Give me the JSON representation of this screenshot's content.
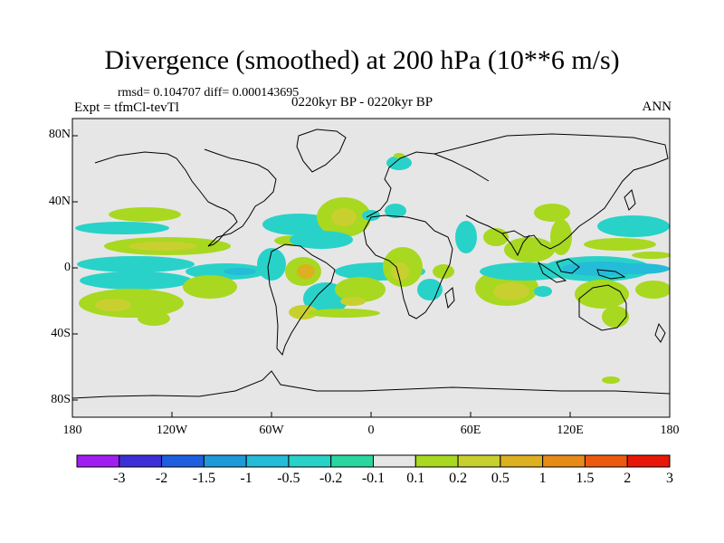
{
  "title": "Divergence (smoothed) at 200 hPa (10**6 m/s)",
  "stats": "rmsd= 0.104707  diff= 0.000143695",
  "experiment": "Expt = tfmCl-tevTl",
  "period": "0220kyr BP - 0220kyr BP",
  "season": "ANN",
  "lat_labels": [
    "80N",
    "40N",
    "0",
    "40S",
    "80S"
  ],
  "lon_labels": [
    "180",
    "120W",
    "60W",
    "0",
    "60E",
    "120E",
    "180"
  ],
  "colorbar": {
    "labels": [
      "-3",
      "-2",
      "-1.5",
      "-1",
      "-0.5",
      "-0.2",
      "-0.1",
      "0.1",
      "0.2",
      "0.5",
      "1",
      "1.5",
      "2",
      "3"
    ],
    "colors": [
      "#a01ff0",
      "#3c2fd8",
      "#1e5fe0",
      "#1e9ad8",
      "#24bcd8",
      "#28d2c8",
      "#2ad6a0",
      "#e6e6e6",
      "#a8d820",
      "#c8d030",
      "#dcb020",
      "#e88a18",
      "#ec5a10",
      "#e81808"
    ]
  },
  "map": {
    "background": "#e6e6e6",
    "lat_range": [
      -90,
      90
    ],
    "lon_range": [
      -180,
      180
    ]
  }
}
